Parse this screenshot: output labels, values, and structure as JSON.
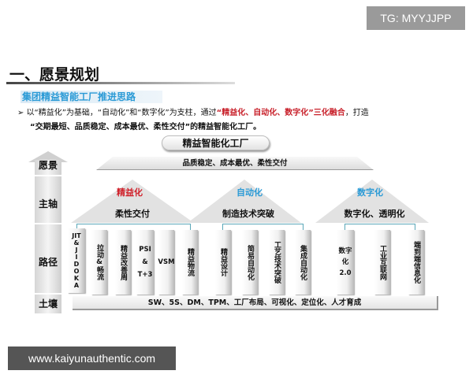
{
  "watermark_top": "TG: MYYJJPP",
  "watermark_bottom": "www.kaiyunauthentic.com",
  "title": "一、愿景规划",
  "subtitle": "集团精益智能工厂推进思路",
  "bullet": {
    "a": "以“精益化”为基础，“自动化”和“数字化”为支柱，通过",
    "b": "“精益化、自动化、数字化”三化融合",
    "c": "，打造",
    "d": "“交期最短、品质稳定、成本最优、柔性交付”的精益智能化工厂。"
  },
  "top": "精益智能化工厂",
  "roof": "品质稳定、成本最优、柔性交付",
  "layers": [
    "愿景",
    "主轴",
    "路径",
    "土壤"
  ],
  "pillars": [
    {
      "name": "精益化",
      "color": "#d0202a",
      "focus": "柔性交付",
      "items": [
        "JIT\n&\nJ\nI\nD\nO\nK\nA",
        "拉动&畅流",
        "精益改善周",
        "PSI\n&\nT+3",
        "VSM",
        "精益物流"
      ]
    },
    {
      "name": "自动化",
      "color": "#2a9ad6",
      "focus": "制造技术突破",
      "items": [
        "精益设计",
        "简易自动化",
        "工艺技术突破",
        "集成自动化"
      ]
    },
    {
      "name": "数字化",
      "color": "#2a9ad6",
      "focus": "数字化、透明化",
      "items": [
        "数字化\n2.0",
        "工业互联网",
        "端到端信息化"
      ]
    }
  ],
  "soil": "SW、5S、DM、TPM、工厂布局、可视化、定位化、人才育成"
}
